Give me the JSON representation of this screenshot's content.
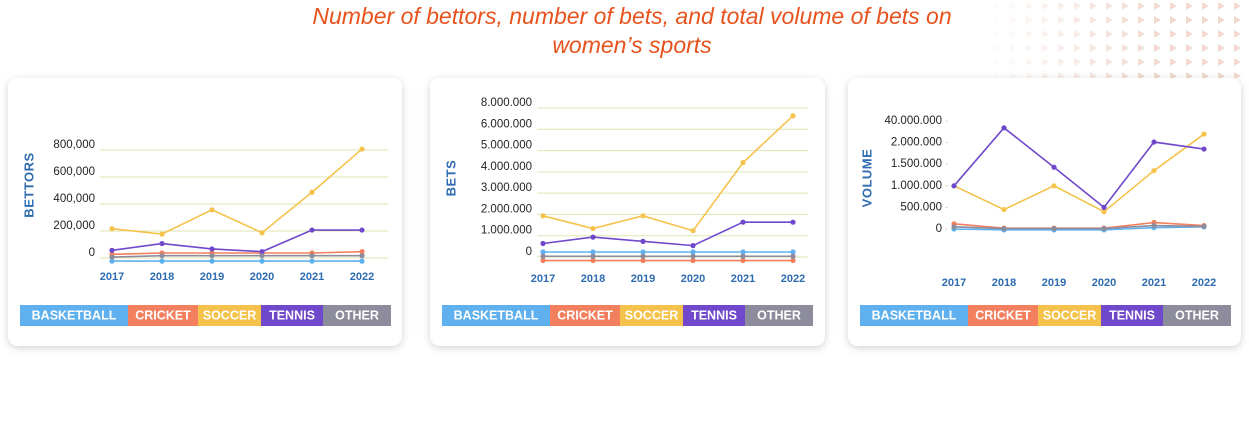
{
  "title": "Number of bettors, number of bets, and total volume of bets on women’s sports",
  "chart_data": [
    {
      "type": "line",
      "y_label": "BETTORS",
      "categories": [
        "2017",
        "2018",
        "2019",
        "2020",
        "2021",
        "2022"
      ],
      "ylim": [
        -100000,
        850000
      ],
      "yticks": [
        0,
        {
          "value": 200000,
          "label": "200,000"
        },
        {
          "value": 400000,
          "label": "400,000"
        },
        {
          "value": 600000,
          "label": "600,000"
        },
        {
          "value": 800000,
          "label": "800,000"
        }
      ],
      "grid": true,
      "series": [
        {
          "name": "BASKETBALL",
          "color": "#5eb0ee",
          "values": [
            -60000,
            -60000,
            -60000,
            -60000,
            -60000,
            -60000
          ]
        },
        {
          "name": "CRICKET",
          "color": "#f2805f",
          "values": [
            -10000,
            0,
            0,
            0,
            0,
            10000
          ]
        },
        {
          "name": "SOCCER",
          "color": "#f5c24b",
          "values": [
            180000,
            140000,
            320000,
            150000,
            450000,
            770000
          ]
        },
        {
          "name": "TENNIS",
          "color": "#7048cc",
          "values": [
            20000,
            70000,
            30000,
            10000,
            170000,
            170000
          ]
        },
        {
          "name": "OTHER",
          "color": "#8c8c9c",
          "values": [
            -30000,
            -20000,
            -20000,
            -20000,
            -20000,
            -20000
          ]
        }
      ]
    },
    {
      "type": "line",
      "y_label": "BETS",
      "categories": [
        "2017",
        "2018",
        "2019",
        "2020",
        "2021",
        "2022"
      ],
      "ylim": [
        -600000,
        8200000
      ],
      "yticks": [
        0,
        {
          "value": 1000000,
          "label": "1.000.000"
        },
        {
          "value": 2000000,
          "label": "2.000.000"
        },
        {
          "value": 3000000,
          "label": "3.000.000"
        },
        {
          "value": 4000000,
          "label": "4.000.000"
        },
        {
          "value": 5000000,
          "label": "5.000.000"
        },
        {
          "value": 6000000,
          "label": "6.000.000"
        },
        {
          "value": 8000000,
          "label": "8.000.000"
        }
      ],
      "grid": true,
      "series": [
        {
          "name": "BASKETBALL",
          "color": "#5eb0ee",
          "values": [
            0,
            0,
            0,
            0,
            0,
            0
          ]
        },
        {
          "name": "CRICKET",
          "color": "#f2805f",
          "values": [
            -400000,
            -400000,
            -400000,
            -400000,
            -400000,
            -400000
          ]
        },
        {
          "name": "SOCCER",
          "color": "#f5c24b",
          "values": [
            1700000,
            1100000,
            1700000,
            1000000,
            4200000,
            6800000
          ]
        },
        {
          "name": "TENNIS",
          "color": "#7048cc",
          "values": [
            400000,
            700000,
            500000,
            300000,
            1400000,
            1400000
          ]
        },
        {
          "name": "OTHER",
          "color": "#8c8c9c",
          "values": [
            -200000,
            -200000,
            -200000,
            -200000,
            -200000,
            -200000
          ]
        }
      ]
    },
    {
      "type": "line",
      "y_label": "VOLUME",
      "categories": [
        "2017",
        "2018",
        "2019",
        "2020",
        "2021",
        "2022"
      ],
      "ylim": [
        -250000,
        40000000
      ],
      "yticks": [
        0,
        {
          "value": 500000,
          "label": "500.000"
        },
        {
          "value": 1000000,
          "label": "1.000.000"
        },
        {
          "value": 1500000,
          "label": "1.500.000"
        },
        {
          "value": 2000000,
          "label": "2.000.000"
        },
        {
          "value": 40000000,
          "label": "40.000.000"
        }
      ],
      "grid": false,
      "series": [
        {
          "name": "BASKETBALL",
          "color": "#5eb0ee",
          "values": [
            0,
            -20000,
            -20000,
            -20000,
            30000,
            50000
          ]
        },
        {
          "name": "CRICKET",
          "color": "#f2805f",
          "values": [
            120000,
            20000,
            20000,
            20000,
            150000,
            80000
          ]
        },
        {
          "name": "SOCCER",
          "color": "#f5c24b",
          "values": [
            1000000,
            450000,
            1000000,
            400000,
            1350000,
            17000000
          ]
        },
        {
          "name": "TENNIS",
          "color": "#7048cc",
          "values": [
            1000000,
            28000000,
            1430000,
            500000,
            3000000,
            1850000
          ]
        },
        {
          "name": "OTHER",
          "color": "#8c8c9c",
          "values": [
            50000,
            10000,
            10000,
            10000,
            80000,
            60000
          ]
        }
      ]
    }
  ]
}
